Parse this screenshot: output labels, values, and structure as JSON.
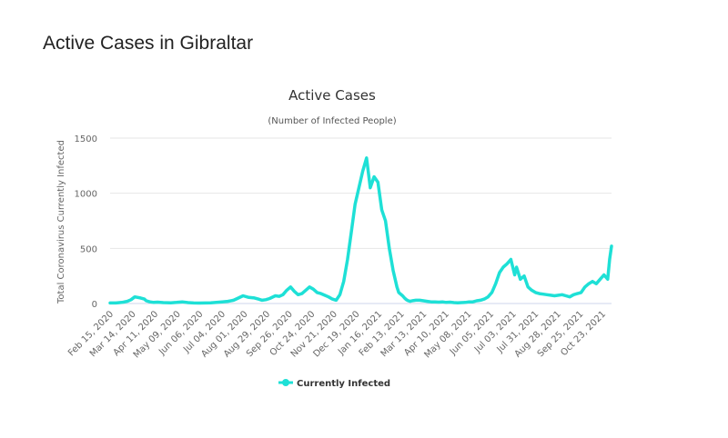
{
  "page": {
    "title": "Active Cases in Gibraltar"
  },
  "chart_data": {
    "type": "line",
    "title": "Active Cases",
    "subtitle": "(Number of Infected People)",
    "xlabel": "",
    "ylabel": "Total Coronavirus Currently Infected",
    "ylim": [
      0,
      1500
    ],
    "y_ticks": [
      "0",
      "500",
      "1000",
      "1500"
    ],
    "grid": "horizontal",
    "legend_position": "bottom-center",
    "categories": [
      "Feb 15, 2020",
      "Mar 14, 2020",
      "Apr 11, 2020",
      "May 09, 2020",
      "Jun 06, 2020",
      "Jul 04, 2020",
      "Aug 01, 2020",
      "Aug 29, 2020",
      "Sep 26, 2020",
      "Oct 24, 2020",
      "Nov 21, 2020",
      "Dec 19, 2020",
      "Jan 16, 2021",
      "Feb 13, 2021",
      "Mar 13, 2021",
      "Apr 10, 2021",
      "May 08, 2021",
      "Jun 05, 2021",
      "Jul 03, 2021",
      "Jul 31, 2021",
      "Aug 28, 2021",
      "Sep 25, 2021",
      "Oct 23, 2021"
    ],
    "colors": {
      "line": "#1ee0d6",
      "grid": "#e6e6e6",
      "axis": "#ccd6eb"
    },
    "series": [
      {
        "name": "Currently Infected",
        "x": [
          0,
          3,
          5,
          6,
          7,
          9,
          11,
          13,
          16,
          18,
          19,
          21,
          23,
          25,
          28,
          32,
          35,
          38,
          41,
          44,
          47,
          50,
          53,
          56,
          59,
          62,
          65,
          67,
          70,
          73,
          76,
          78,
          80,
          82,
          84,
          87,
          89,
          91,
          93,
          95,
          97,
          99,
          101,
          103,
          105,
          107,
          109,
          111,
          113,
          115,
          117,
          119,
          121,
          123,
          125,
          127,
          129,
          131,
          133,
          135,
          137,
          139,
          141,
          143,
          145,
          147,
          149,
          151,
          152,
          154,
          155,
          156,
          157,
          158,
          159,
          161,
          163,
          165,
          167,
          169,
          171,
          173,
          175,
          177,
          179,
          181,
          183,
          185,
          187,
          189,
          191,
          193,
          195,
          197,
          199,
          201,
          203,
          205,
          207,
          209,
          211,
          213,
          214,
          216,
          218,
          220,
          222,
          224,
          226,
          228,
          230,
          232,
          234,
          236,
          238,
          240,
          242,
          244,
          246,
          248,
          250,
          252,
          254,
          256,
          258,
          260,
          262,
          263,
          264
        ],
        "y": [
          5,
          5,
          8,
          10,
          12,
          20,
          35,
          60,
          50,
          40,
          25,
          15,
          10,
          12,
          8,
          7,
          10,
          15,
          8,
          5,
          4,
          5,
          6,
          10,
          15,
          20,
          30,
          45,
          70,
          55,
          50,
          40,
          30,
          35,
          45,
          70,
          65,
          80,
          120,
          150,
          110,
          80,
          90,
          120,
          150,
          130,
          100,
          90,
          75,
          60,
          40,
          30,
          80,
          200,
          400,
          650,
          900,
          1050,
          1200,
          1320,
          1050,
          1150,
          1100,
          850,
          750,
          500,
          300,
          150,
          100,
          70,
          50,
          35,
          25,
          20,
          25,
          30,
          30,
          25,
          20,
          15,
          15,
          12,
          15,
          10,
          12,
          8,
          6,
          8,
          10,
          15,
          15,
          25,
          30,
          40,
          60,
          100,
          180,
          280,
          330,
          360,
          400,
          260,
          330,
          220,
          250,
          150,
          120,
          100,
          90,
          85,
          80,
          75,
          70,
          75,
          80,
          70,
          60,
          80,
          90,
          100,
          150,
          180,
          200,
          180,
          220,
          260,
          220,
          400,
          520
        ]
      }
    ],
    "legend": [
      {
        "label": "Currently Infected"
      }
    ]
  }
}
